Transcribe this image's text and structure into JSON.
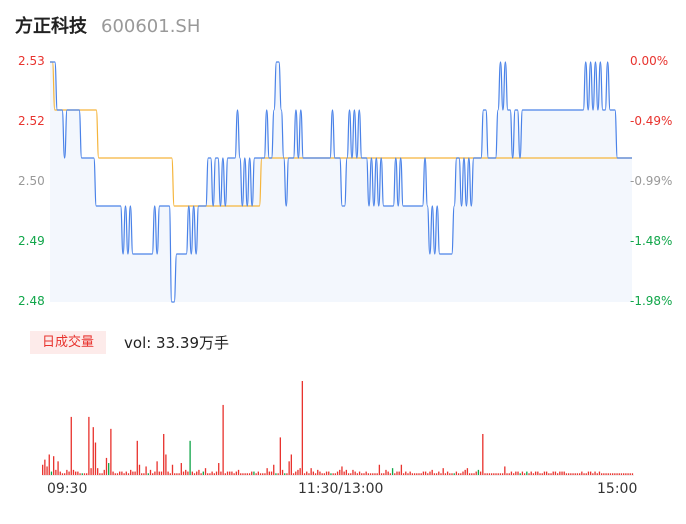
{
  "header": {
    "name": "方正科技",
    "code": "600601.SH"
  },
  "colors": {
    "up": "#e8332e",
    "down": "#11a64a",
    "price_line": "#4a82e8",
    "avg_line": "#f5b53c",
    "neutral": "#999999",
    "area_fill": "#f3f7fd"
  },
  "chart_data": [
    {
      "type": "line",
      "y_ticks_left": [
        "2.53",
        "2.52",
        "2.50",
        "2.49",
        "2.48"
      ],
      "y_ticks_right": [
        "0.00%",
        "-0.49%",
        "-0.99%",
        "-1.48%",
        "-1.98%"
      ],
      "ylim": [
        2.48,
        2.53
      ],
      "x_labels": [
        "09:30",
        "11:30/13:00",
        "15:00"
      ],
      "x_count": 240,
      "series": [
        {
          "role": "price",
          "points": [
            [
              0,
              2.53
            ],
            [
              2,
              2.53
            ],
            [
              3,
              2.52
            ],
            [
              5,
              2.52
            ],
            [
              6,
              2.51
            ],
            [
              7,
              2.52
            ],
            [
              12,
              2.52
            ],
            [
              13,
              2.51
            ],
            [
              18,
              2.51
            ],
            [
              19,
              2.5
            ],
            [
              29,
              2.5
            ],
            [
              30,
              2.49
            ],
            [
              31,
              2.5
            ],
            [
              32,
              2.49
            ],
            [
              33,
              2.5
            ],
            [
              34,
              2.49
            ],
            [
              42,
              2.49
            ],
            [
              43,
              2.5
            ],
            [
              44,
              2.49
            ],
            [
              45,
              2.5
            ],
            [
              49,
              2.5
            ],
            [
              50,
              2.48
            ],
            [
              51,
              2.48
            ],
            [
              52,
              2.49
            ],
            [
              56,
              2.49
            ],
            [
              57,
              2.5
            ],
            [
              58,
              2.49
            ],
            [
              59,
              2.5
            ],
            [
              60,
              2.49
            ],
            [
              61,
              2.5
            ],
            [
              64,
              2.5
            ],
            [
              65,
              2.51
            ],
            [
              66,
              2.51
            ],
            [
              67,
              2.5
            ],
            [
              68,
              2.51
            ],
            [
              69,
              2.51
            ],
            [
              70,
              2.5
            ],
            [
              71,
              2.51
            ],
            [
              72,
              2.5
            ],
            [
              73,
              2.51
            ],
            [
              76,
              2.51
            ],
            [
              77,
              2.52
            ],
            [
              78,
              2.51
            ],
            [
              79,
              2.5
            ],
            [
              80,
              2.51
            ],
            [
              81,
              2.5
            ],
            [
              82,
              2.51
            ],
            [
              83,
              2.5
            ],
            [
              84,
              2.51
            ],
            [
              88,
              2.51
            ],
            [
              89,
              2.52
            ],
            [
              90,
              2.51
            ],
            [
              91,
              2.51
            ],
            [
              92,
              2.52
            ],
            [
              93,
              2.53
            ],
            [
              94,
              2.53
            ],
            [
              95,
              2.52
            ],
            [
              96,
              2.51
            ],
            [
              97,
              2.5
            ],
            [
              98,
              2.51
            ],
            [
              100,
              2.51
            ],
            [
              101,
              2.52
            ],
            [
              102,
              2.51
            ],
            [
              103,
              2.52
            ],
            [
              104,
              2.51
            ],
            [
              115,
              2.51
            ],
            [
              116,
              2.52
            ],
            [
              117,
              2.51
            ],
            [
              119,
              2.51
            ],
            [
              120,
              2.5
            ],
            [
              121,
              2.5
            ],
            [
              122,
              2.51
            ],
            [
              123,
              2.52
            ],
            [
              124,
              2.51
            ],
            [
              125,
              2.52
            ],
            [
              126,
              2.51
            ],
            [
              127,
              2.52
            ],
            [
              128,
              2.51
            ],
            [
              130,
              2.51
            ],
            [
              131,
              2.5
            ],
            [
              132,
              2.51
            ],
            [
              133,
              2.5
            ],
            [
              134,
              2.51
            ],
            [
              135,
              2.5
            ],
            [
              136,
              2.51
            ],
            [
              137,
              2.5
            ],
            [
              141,
              2.5
            ],
            [
              142,
              2.51
            ],
            [
              143,
              2.5
            ],
            [
              144,
              2.51
            ],
            [
              145,
              2.5
            ],
            [
              153,
              2.5
            ],
            [
              154,
              2.51
            ],
            [
              155,
              2.5
            ],
            [
              156,
              2.49
            ],
            [
              157,
              2.5
            ],
            [
              158,
              2.49
            ],
            [
              159,
              2.5
            ],
            [
              160,
              2.49
            ],
            [
              165,
              2.49
            ],
            [
              166,
              2.5
            ],
            [
              167,
              2.51
            ],
            [
              168,
              2.51
            ],
            [
              169,
              2.5
            ],
            [
              170,
              2.51
            ],
            [
              171,
              2.5
            ],
            [
              172,
              2.51
            ],
            [
              173,
              2.5
            ],
            [
              174,
              2.51
            ],
            [
              177,
              2.51
            ],
            [
              178,
              2.52
            ],
            [
              179,
              2.52
            ],
            [
              180,
              2.51
            ],
            [
              183,
              2.51
            ],
            [
              184,
              2.52
            ],
            [
              185,
              2.53
            ],
            [
              186,
              2.52
            ],
            [
              187,
              2.53
            ],
            [
              188,
              2.52
            ],
            [
              189,
              2.52
            ],
            [
              190,
              2.51
            ],
            [
              191,
              2.52
            ],
            [
              192,
              2.52
            ],
            [
              193,
              2.51
            ],
            [
              194,
              2.52
            ],
            [
              219,
              2.52
            ],
            [
              220,
              2.53
            ],
            [
              221,
              2.52
            ],
            [
              222,
              2.53
            ],
            [
              223,
              2.52
            ],
            [
              224,
              2.53
            ],
            [
              225,
              2.52
            ],
            [
              226,
              2.53
            ],
            [
              227,
              2.52
            ],
            [
              228,
              2.52
            ],
            [
              229,
              2.53
            ],
            [
              230,
              2.52
            ],
            [
              232,
              2.52
            ],
            [
              233,
              2.51
            ],
            [
              239,
              2.51
            ]
          ]
        },
        {
          "role": "average",
          "points": [
            [
              0,
              2.53
            ],
            [
              1,
              2.53
            ],
            [
              2,
              2.52
            ],
            [
              19,
              2.52
            ],
            [
              20,
              2.51
            ],
            [
              50,
              2.51
            ],
            [
              51,
              2.5
            ],
            [
              86,
              2.5
            ],
            [
              87,
              2.51
            ],
            [
              239,
              2.51
            ]
          ]
        }
      ]
    },
    {
      "type": "bar",
      "label": "日成交量",
      "summary": "vol: 33.39万手",
      "values": [
        6,
        9,
        5,
        12,
        2,
        11,
        3,
        8,
        2,
        1,
        1,
        3,
        2,
        34,
        3,
        2,
        2,
        1,
        1,
        1,
        1,
        34,
        4,
        28,
        19,
        4,
        1,
        1,
        3,
        10,
        7,
        27,
        2,
        1,
        1,
        2,
        2,
        1,
        2,
        1,
        3,
        2,
        2,
        20,
        6,
        1,
        1,
        5,
        1,
        3,
        1,
        2,
        8,
        2,
        2,
        24,
        12,
        2,
        1,
        6,
        1,
        1,
        1,
        7,
        2,
        3,
        2,
        20,
        2,
        1,
        2,
        3,
        1,
        2,
        4,
        1,
        1,
        2,
        1,
        2,
        7,
        2,
        41,
        1,
        2,
        2,
        2,
        1,
        2,
        3,
        1,
        1,
        1,
        1,
        1,
        2,
        2,
        1,
        2,
        1,
        1,
        1,
        4,
        2,
        2,
        6,
        1,
        1,
        22,
        3,
        1,
        1,
        8,
        12,
        1,
        2,
        3,
        4,
        55,
        1,
        2,
        1,
        4,
        2,
        1,
        3,
        2,
        1,
        1,
        2,
        2,
        1,
        1,
        1,
        2,
        3,
        5,
        2,
        3,
        1,
        1,
        3,
        2,
        1,
        2,
        1,
        1,
        2,
        1,
        1,
        1,
        1,
        1,
        6,
        1,
        1,
        3,
        2,
        1,
        4,
        1,
        2,
        2,
        6,
        1,
        2,
        1,
        2,
        1,
        1,
        1,
        1,
        1,
        2,
        2,
        1,
        2,
        3,
        1,
        1,
        2,
        1,
        4,
        1,
        2,
        1,
        1,
        1,
        2,
        1,
        1,
        2,
        3,
        4,
        1,
        1,
        1,
        2,
        3,
        2,
        24,
        1,
        1,
        1,
        1,
        1,
        1,
        1,
        1,
        1,
        5,
        1,
        1,
        2,
        1,
        2,
        2,
        1,
        2,
        1,
        2,
        1,
        2,
        1,
        2,
        2,
        1,
        1,
        2,
        2,
        1,
        1,
        2,
        2,
        1,
        2,
        2,
        2,
        1,
        1,
        1,
        1,
        1,
        1,
        1,
        2,
        1,
        1,
        2,
        2,
        1,
        2,
        1,
        2,
        1,
        1,
        1,
        1,
        1,
        1,
        1,
        1,
        1,
        1,
        1,
        1,
        1,
        1,
        1
      ],
      "colors_pattern": "up-mostly"
    }
  ],
  "volume_row": {
    "badge": "日成交量",
    "text": "vol: 33.39万手"
  }
}
